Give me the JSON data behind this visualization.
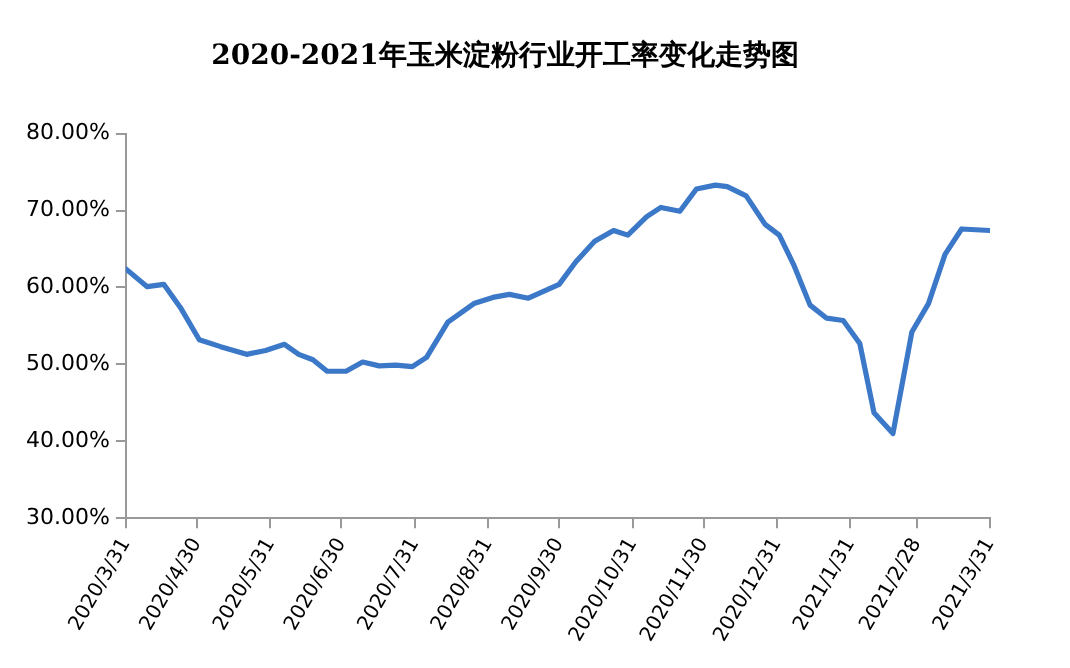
{
  "chart_data": {
    "type": "line",
    "title": "2020-2021年玉米淀粉行业开工率变化走势图",
    "x": [
      "2020-03-31",
      "2020-04-09",
      "2020-04-16",
      "2020-04-23",
      "2020-05-01",
      "2020-05-10",
      "2020-05-21",
      "2020-05-29",
      "2020-06-06",
      "2020-06-12",
      "2020-06-18",
      "2020-06-24",
      "2020-07-02",
      "2020-07-09",
      "2020-07-16",
      "2020-07-23",
      "2020-07-30",
      "2020-08-05",
      "2020-08-14",
      "2020-08-25",
      "2020-09-02",
      "2020-09-09",
      "2020-09-17",
      "2020-09-30",
      "2020-10-07",
      "2020-10-15",
      "2020-10-23",
      "2020-10-29",
      "2020-11-06",
      "2020-11-12",
      "2020-11-20",
      "2020-11-27",
      "2020-12-05",
      "2020-12-10",
      "2020-12-18",
      "2020-12-26",
      "2021-01-01",
      "2021-01-07",
      "2021-01-14",
      "2021-01-21",
      "2021-01-28",
      "2021-02-04",
      "2021-02-10",
      "2021-02-18",
      "2021-02-26",
      "2021-03-05",
      "2021-03-12",
      "2021-03-19",
      "2021-03-31"
    ],
    "series": [
      {
        "color": "#3c78c8",
        "values": [
          62.4,
          60.1,
          60.4,
          57.4,
          53.2,
          52.3,
          51.3,
          51.8,
          52.6,
          51.3,
          50.6,
          49.1,
          49.1,
          50.3,
          49.8,
          49.9,
          49.7,
          50.9,
          55.5,
          57.9,
          58.7,
          59.1,
          58.6,
          60.4,
          63.3,
          66.0,
          67.4,
          66.8,
          69.2,
          70.4,
          69.9,
          72.8,
          73.3,
          73.1,
          71.9,
          68.2,
          66.8,
          63.0,
          57.7,
          56.0,
          55.7,
          52.7,
          43.7,
          41.0,
          54.2,
          57.9,
          64.3,
          67.6,
          67.4
        ]
      }
    ],
    "xlim": [
      "2020-03-31",
      "2021-03-31"
    ],
    "xticks": [
      {
        "value": "2020-03-31",
        "label": "2020/3/31"
      },
      {
        "value": "2020-04-30",
        "label": "2020/4/30"
      },
      {
        "value": "2020-05-31",
        "label": "2020/5/31"
      },
      {
        "value": "2020-06-30",
        "label": "2020/6/30"
      },
      {
        "value": "2020-07-31",
        "label": "2020/7/31"
      },
      {
        "value": "2020-08-31",
        "label": "2020/8/31"
      },
      {
        "value": "2020-09-30",
        "label": "2020/9/30"
      },
      {
        "value": "2020-10-31",
        "label": "2020/10/31"
      },
      {
        "value": "2020-11-30",
        "label": "2020/11/30"
      },
      {
        "value": "2020-12-31",
        "label": "2020/12/31"
      },
      {
        "value": "2021-01-31",
        "label": "2021/1/31"
      },
      {
        "value": "2021-02-28",
        "label": "2021/2/28"
      },
      {
        "value": "2021-03-31",
        "label": "2021/3/31"
      }
    ],
    "ylim": [
      30,
      80
    ],
    "yticks": [
      {
        "value": 30,
        "label": "30.00%"
      },
      {
        "value": 40,
        "label": "40.00%"
      },
      {
        "value": 50,
        "label": "50.00%"
      },
      {
        "value": 60,
        "label": "60.00%"
      },
      {
        "value": 70,
        "label": "70.00%"
      },
      {
        "value": 80,
        "label": "80.00%"
      }
    ],
    "grid": false,
    "legend": false,
    "marker": "none",
    "line_style": "solid"
  }
}
